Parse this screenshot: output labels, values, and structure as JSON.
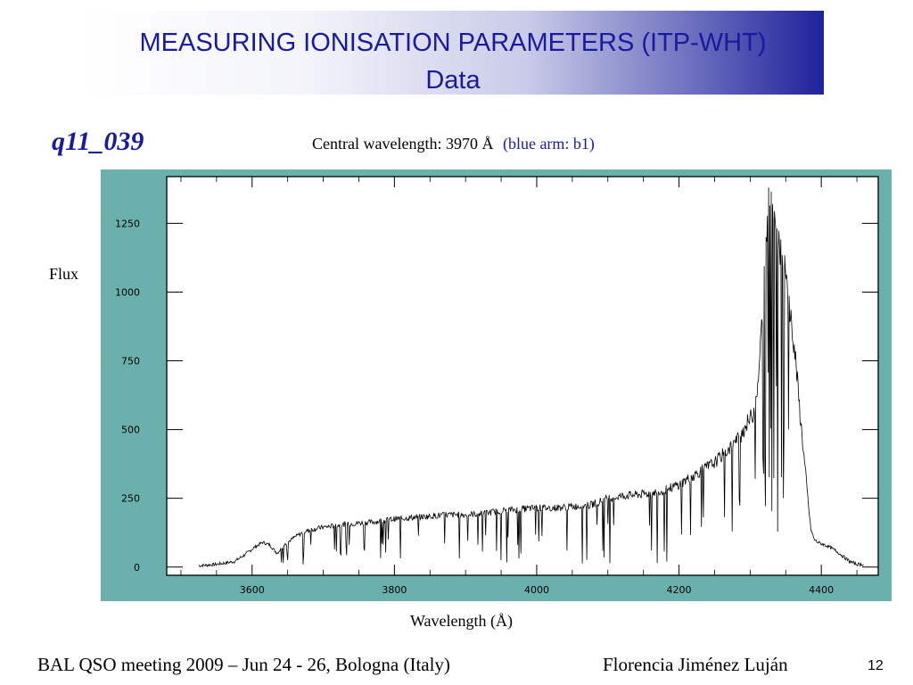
{
  "slide": {
    "title_line1": "MEASURING IONISATION PARAMETERS (ITP-WHT)",
    "title_line2": "Data",
    "object_name": "q11_039",
    "central_wavelength": "Central wavelength: 3970 Å",
    "arm": "(blue arm: b1)",
    "footer_left": "BAL QSO meeting 2009 – Jun 24 - 26, Bologna (Italy)",
    "footer_right": "Florencia Jiménez Luján",
    "page_number": "12"
  },
  "colors": {
    "title_text": "#1a1aa0",
    "plot_panel": "#6ab1ad",
    "plot_area": "#ffffff",
    "spectrum_line": "#000000"
  },
  "chart_data": {
    "type": "line",
    "title": "",
    "xlabel": "Wavelength (Å)",
    "ylabel": "Flux",
    "xlim": [
      3480,
      4480
    ],
    "ylim": [
      -30,
      1420
    ],
    "xticks": [
      3600,
      3800,
      4000,
      4200,
      4400
    ],
    "yticks": [
      0,
      250,
      500,
      750,
      1000,
      1250
    ],
    "grid": false,
    "series": [
      {
        "x": [
          3525,
          3550,
          3575,
          3590,
          3605,
          3615,
          3625,
          3635,
          3645,
          3660,
          3675,
          3690,
          3700,
          3715,
          3730,
          3750,
          3775,
          3800,
          3825,
          3850,
          3875,
          3900,
          3925,
          3950,
          3975,
          4000,
          4025,
          4050,
          4075,
          4100,
          4125,
          4150,
          4175,
          4200,
          4225,
          4250,
          4270,
          4285,
          4295,
          4305,
          4312,
          4318,
          4322,
          4326,
          4330,
          4335,
          4340,
          4345,
          4350,
          4355,
          4360,
          4365,
          4370,
          4375,
          4380,
          4385,
          4390,
          4395,
          4400,
          4410,
          4420,
          4430,
          4440,
          4450,
          4460
        ],
        "y": [
          5,
          10,
          20,
          45,
          75,
          90,
          80,
          50,
          80,
          110,
          130,
          140,
          145,
          150,
          155,
          160,
          165,
          175,
          180,
          185,
          190,
          190,
          195,
          205,
          210,
          215,
          215,
          220,
          225,
          250,
          260,
          265,
          275,
          300,
          340,
          380,
          430,
          470,
          520,
          560,
          700,
          950,
          1200,
          1340,
          1360,
          1300,
          1200,
          1120,
          1050,
          950,
          850,
          720,
          560,
          420,
          280,
          140,
          100,
          90,
          85,
          75,
          60,
          40,
          20,
          10,
          10
        ]
      }
    ]
  }
}
